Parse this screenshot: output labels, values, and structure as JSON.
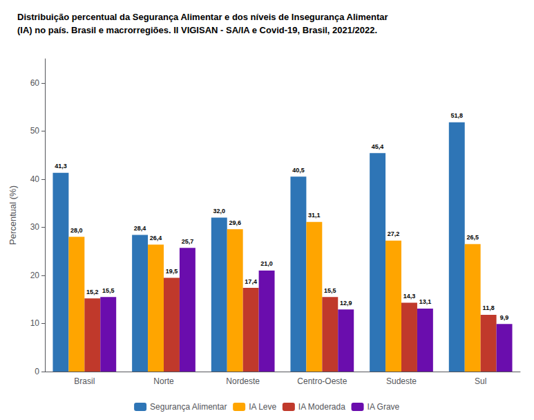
{
  "chart_data": {
    "type": "bar",
    "title": "Distribuição percentual da Segurança Alimentar e dos níveis de Insegurança Alimentar\n(IA) no país. Brasil e macrorregiões. II VIGISAN - SA/IA e Covid-19, Brasil, 2021/2022.",
    "categories": [
      "Brasil",
      "Norte",
      "Nordeste",
      "Centro-Oeste",
      "Sudeste",
      "Sul"
    ],
    "series": [
      {
        "name": "Segurança Alimentar",
        "color": "#2E75B6",
        "values": [
          41.3,
          28.4,
          32.0,
          40.5,
          45.4,
          51.8
        ],
        "value_labels": [
          "41,3",
          "28,4",
          "32,0",
          "40,5",
          "45,4",
          "51,8"
        ]
      },
      {
        "name": "IA Leve",
        "color": "#FFA500",
        "values": [
          28.0,
          26.4,
          29.6,
          31.1,
          27.2,
          26.5
        ],
        "value_labels": [
          "28,0",
          "26,4",
          "29,6",
          "31,1",
          "27,2",
          "26,5"
        ]
      },
      {
        "name": "IA Moderada",
        "color": "#C0392B",
        "values": [
          15.2,
          19.5,
          17.4,
          15.5,
          14.3,
          11.8
        ],
        "value_labels": [
          "15,2",
          "19,5",
          "17,4",
          "15,5",
          "14,3",
          "11,8"
        ]
      },
      {
        "name": "IA Grave",
        "color": "#6A0DAD",
        "values": [
          15.5,
          25.7,
          21.0,
          12.9,
          13.1,
          9.9
        ],
        "value_labels": [
          "15,5",
          "25,7",
          "21,0",
          "12,9",
          "13,1",
          "9,9"
        ]
      }
    ],
    "ylabel": "Percentual (%)",
    "ylim": [
      0,
      65
    ],
    "yticks": [
      0,
      10,
      20,
      30,
      40,
      50,
      60
    ],
    "grid": false,
    "legend": "bottom",
    "data_labels": true
  }
}
